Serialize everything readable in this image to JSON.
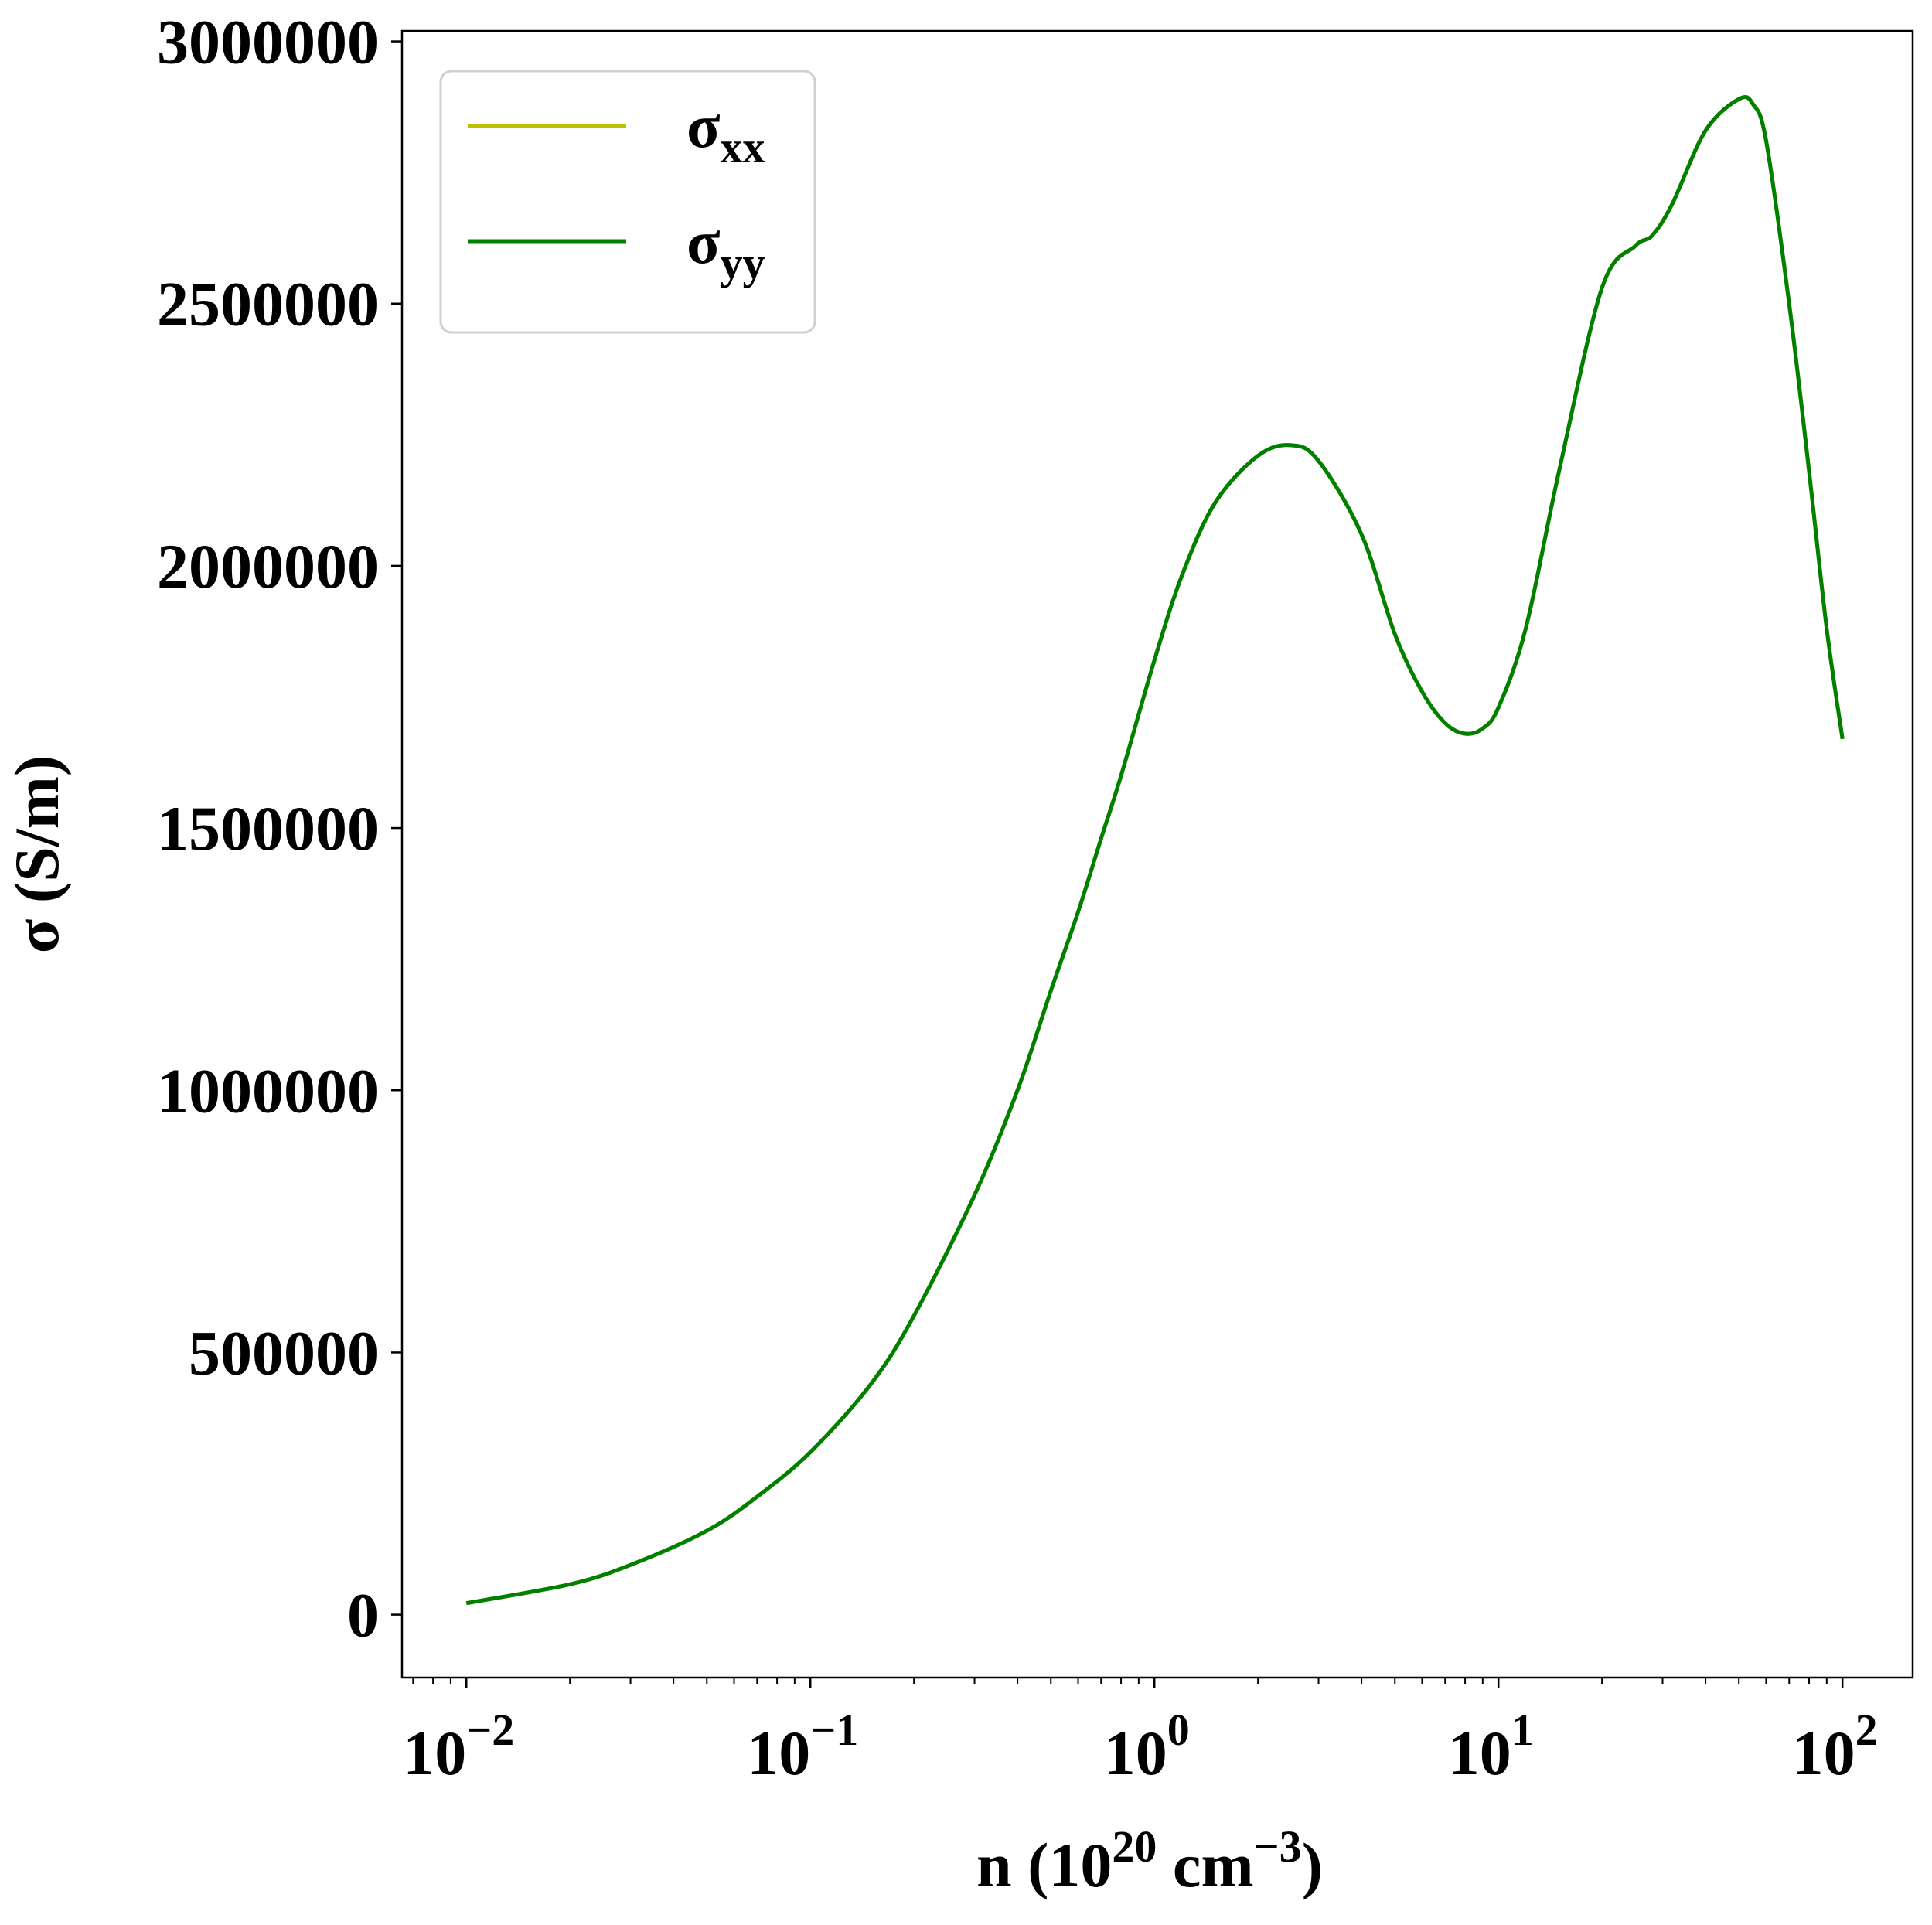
{
  "chart_data": {
    "type": "line",
    "title": "",
    "xlabel": {
      "base": "n (10",
      "sup1": "20",
      "mid": " cm",
      "sup2": "−3",
      "end": ")"
    },
    "ylabel": "σ (S/m)",
    "xscale": "log",
    "xlim": [
      0.0065,
      160
    ],
    "ylim": [
      -120000,
      3020000
    ],
    "grid": false,
    "legend_position": "upper-left",
    "x_ticks": [
      {
        "value": 0.01,
        "base": "10",
        "exp": "−2"
      },
      {
        "value": 0.1,
        "base": "10",
        "exp": "−1"
      },
      {
        "value": 1,
        "base": "10",
        "exp": "0"
      },
      {
        "value": 10,
        "base": "10",
        "exp": "1"
      },
      {
        "value": 100,
        "base": "10",
        "exp": "2"
      }
    ],
    "y_ticks": [
      {
        "value": 0,
        "label": "0"
      },
      {
        "value": 500000,
        "label": "500000"
      },
      {
        "value": 1000000,
        "label": "1000000"
      },
      {
        "value": 1500000,
        "label": "1500000"
      },
      {
        "value": 2000000,
        "label": "2000000"
      },
      {
        "value": 2500000,
        "label": "2500000"
      },
      {
        "value": 3000000,
        "label": "3000000"
      }
    ],
    "x": [
      0.01,
      0.02,
      0.03,
      0.05,
      0.07,
      0.1,
      0.15,
      0.2,
      0.3,
      0.4,
      0.5,
      0.6,
      0.7,
      0.8,
      1.0,
      1.2,
      1.5,
      2.0,
      2.5,
      3.0,
      4.0,
      5.0,
      6.0,
      7.0,
      8.0,
      9.0,
      10,
      12,
      15,
      20,
      25,
      28,
      32,
      40,
      50,
      55,
      60,
      70,
      80,
      90,
      100
    ],
    "series": [
      {
        "name_base": "σ",
        "name_sub": "xx",
        "color": "#bfbf00",
        "values": [
          22000,
          58000,
          95000,
          160000,
          225000,
          310000,
          440000,
          570000,
          800000,
          1000000,
          1190000,
          1340000,
          1480000,
          1600000,
          1820000,
          1980000,
          2120000,
          2210000,
          2230000,
          2200000,
          2060000,
          1870000,
          1760000,
          1700000,
          1680000,
          1690000,
          1730000,
          1880000,
          2180000,
          2530000,
          2610000,
          2630000,
          2690000,
          2830000,
          2890000,
          2880000,
          2810000,
          2500000,
          2180000,
          1880000,
          1670000
        ]
      },
      {
        "name_base": "σ",
        "name_sub": "yy",
        "color": "#008000",
        "values": [
          22000,
          58000,
          95000,
          160000,
          225000,
          310000,
          440000,
          570000,
          800000,
          1000000,
          1190000,
          1340000,
          1480000,
          1600000,
          1820000,
          1980000,
          2120000,
          2210000,
          2230000,
          2200000,
          2060000,
          1870000,
          1760000,
          1700000,
          1680000,
          1690000,
          1730000,
          1880000,
          2180000,
          2530000,
          2610000,
          2630000,
          2690000,
          2830000,
          2890000,
          2880000,
          2810000,
          2500000,
          2180000,
          1880000,
          1670000
        ]
      }
    ]
  }
}
